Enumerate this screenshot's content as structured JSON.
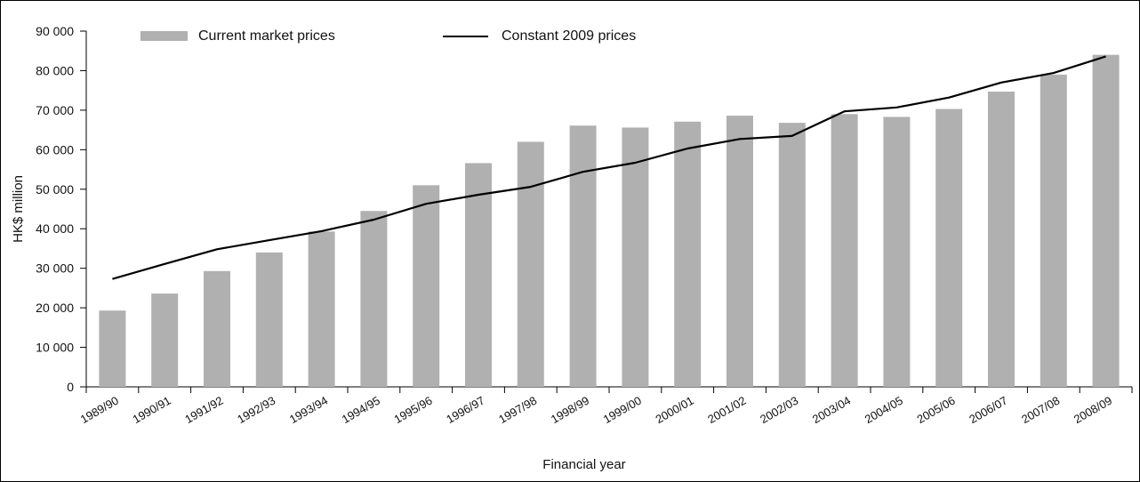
{
  "chart_data": {
    "type": "bar",
    "xlabel": "Financial year",
    "ylabel": "HK$ million",
    "ylim": [
      0,
      90000
    ],
    "yticks": [
      "0",
      "10 000",
      "20 000",
      "30 000",
      "40 000",
      "50 000",
      "60 000",
      "70 000",
      "80 000",
      "90 000"
    ],
    "categories": [
      "1989/90",
      "1990/91",
      "1991/92",
      "1992/93",
      "1993/94",
      "1994/95",
      "1995/96",
      "1996/97",
      "1997/98",
      "1998/99",
      "1999/00",
      "2000/01",
      "2001/02",
      "2002/03",
      "2003/04",
      "2004/05",
      "2005/06",
      "2006/07",
      "2007/08",
      "2008/09"
    ],
    "series": [
      {
        "name": "Current market prices",
        "kind": "bar",
        "color": "#b0b0b0",
        "values": [
          19300,
          23600,
          29300,
          34000,
          39300,
          44500,
          51000,
          56600,
          62000,
          66100,
          65600,
          67100,
          68600,
          66800,
          69000,
          68300,
          70300,
          74700,
          79000,
          84000
        ]
      },
      {
        "name": "Constant 2009 prices",
        "kind": "line",
        "color": "#000000",
        "values": [
          27300,
          31100,
          34800,
          37100,
          39400,
          42300,
          46300,
          48600,
          50600,
          54400,
          56700,
          60300,
          62700,
          63500,
          69700,
          70700,
          73200,
          77000,
          79400,
          83600
        ]
      }
    ],
    "legend": "top"
  }
}
